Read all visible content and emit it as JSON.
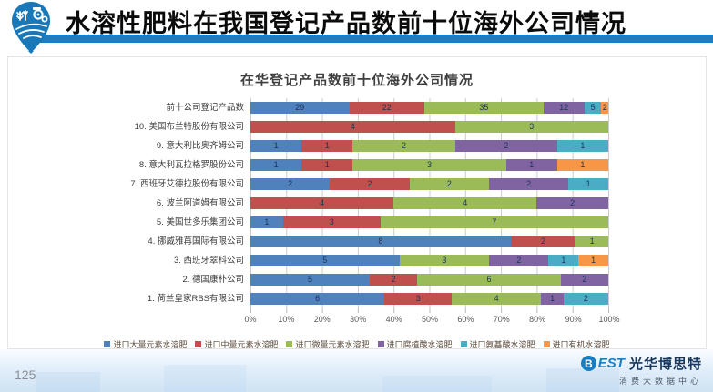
{
  "header": {
    "title": "水溶性肥料在我国登记产品数前十位海外公司情况",
    "accent_color": "#1d7dc2"
  },
  "chart_data": {
    "type": "bar",
    "variant": "100pct-stacked-horizontal",
    "title": "在华登记产品数前十位海外公司情况",
    "xlabel": "",
    "ylabel": "",
    "xlim": [
      0,
      100
    ],
    "grid": true,
    "legend_position": "bottom",
    "x_ticks": [
      "0%",
      "10%",
      "20%",
      "30%",
      "40%",
      "50%",
      "60%",
      "70%",
      "80%",
      "90%",
      "100%"
    ],
    "series": [
      {
        "name": "进口大量元素水溶肥",
        "color": "#4F81BD"
      },
      {
        "name": "进口中量元素水溶肥",
        "color": "#C0504D"
      },
      {
        "name": "进口微量元素水溶肥",
        "color": "#9BBB59"
      },
      {
        "name": "进口腐植酸水溶肥",
        "color": "#8064A2"
      },
      {
        "name": "进口氨基酸水溶肥",
        "color": "#4BACC6"
      },
      {
        "name": "进口有机水溶肥",
        "color": "#F79646"
      }
    ],
    "rows": [
      {
        "label": "前十公司登记产品数",
        "values": [
          29,
          22,
          35,
          12,
          5,
          2
        ]
      },
      {
        "label": "10. 美国布兰特股份有限公司",
        "values": [
          0,
          4,
          3,
          0,
          0,
          0
        ]
      },
      {
        "label": "9. 意大利比奥齐姆公司",
        "values": [
          1,
          1,
          2,
          2,
          1,
          0
        ]
      },
      {
        "label": "8. 意大利瓦拉格罗股份公司",
        "values": [
          1,
          1,
          3,
          1,
          0,
          1
        ]
      },
      {
        "label": "7. 西班牙艾德拉股份有限公司",
        "values": [
          2,
          2,
          2,
          2,
          1,
          0
        ]
      },
      {
        "label": "6. 波兰阿道姆有限公司",
        "values": [
          0,
          4,
          4,
          2,
          0,
          0
        ]
      },
      {
        "label": "5. 美国世多乐集团公司",
        "values": [
          1,
          3,
          7,
          0,
          0,
          0
        ]
      },
      {
        "label": "4. 挪威雅苒国际有限公司",
        "values": [
          8,
          2,
          1,
          0,
          0,
          0
        ]
      },
      {
        "label": "3. 西班牙翠科公司",
        "values": [
          5,
          0,
          3,
          2,
          1,
          1
        ]
      },
      {
        "label": "2. 德国康朴公司",
        "values": [
          5,
          2,
          6,
          2,
          0,
          0
        ]
      },
      {
        "label": "1. 荷兰皇家RBS有限公司",
        "values": [
          6,
          3,
          4,
          1,
          2,
          0
        ]
      }
    ]
  },
  "footer": {
    "page_number": "125",
    "logo_b": "B",
    "logo_est": "EST",
    "logo_name": "光华博思特",
    "logo_subtitle": "消费大数据中心"
  }
}
